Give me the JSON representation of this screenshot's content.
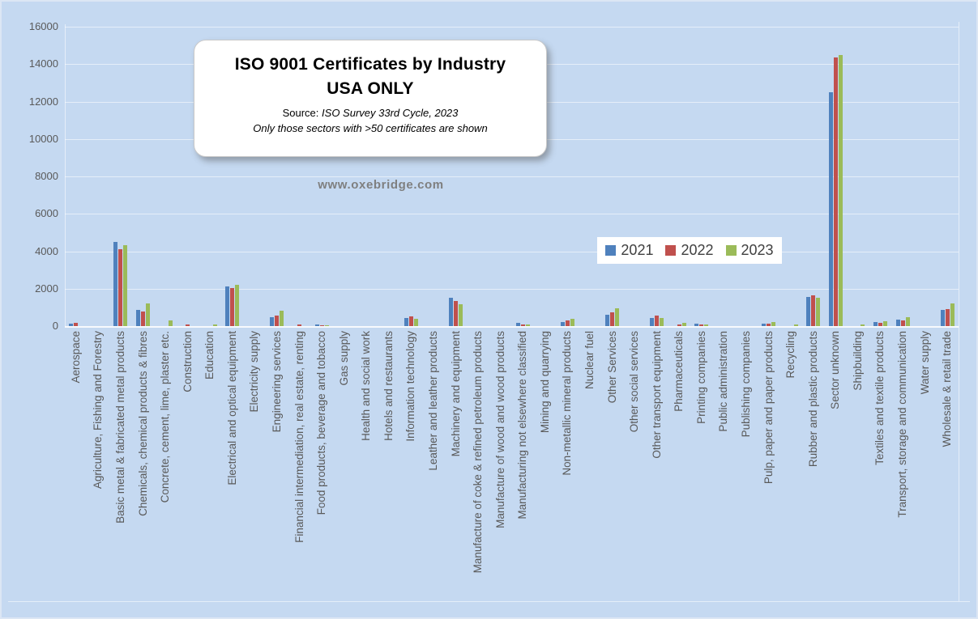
{
  "watermark": "www.oxebridge.com",
  "colors": {
    "background": "#c5d9f1",
    "bar_2021": "#4f81bd",
    "bar_2022": "#c0504d",
    "bar_2023": "#9bbb59",
    "axis_text": "#595959",
    "legend_text": "#404040",
    "watermark_color": "#7f7f7f"
  },
  "chart_data": {
    "type": "bar",
    "title": "ISO 9001 Certificates by Industry",
    "subtitle": "USA ONLY",
    "source_label": "Source:",
    "source": "ISO Survey 33rd Cycle, 2023",
    "note": "Only those sectors with >50 certificates are shown",
    "xlabel": "",
    "ylabel": "",
    "ylim": [
      0,
      16000
    ],
    "ytick_step": 2000,
    "grid": true,
    "legend_position": "center-right",
    "categories": [
      "Aerospace",
      "Agriculture, Fishing and Forestry",
      "Basic metal & fabricated metal products",
      "Chemicals, chemical products & fibres",
      "Concrete, cement, lime, plaster etc.",
      "Construction",
      "Education",
      "Electrical and optical equipment",
      "Electricity supply",
      "Engineering services",
      "Financial intermediation, real estate, renting",
      "Food products, beverage and tobacco",
      "Gas supply",
      "Health and social work",
      "Hotels and restaurants",
      "Information technology",
      "Leather and leather products",
      "Machinery and equipment",
      "Manufacture of coke & refined petroleum products",
      "Manufacture of wood and wood products",
      "Manufacturing not elsewhere classified",
      "Mining and quarrying",
      "Non-metallic mineral products",
      "Nuclear fuel",
      "Other Services",
      "Other social services",
      "Other transport equipment",
      "Pharmaceuticals",
      "Printing companies",
      "Public administration",
      "Publishing companies",
      "Pulp, paper and paper products",
      "Recycling",
      "Rubber and plastic products",
      "Sector unknown",
      "Shipbuilding",
      "Textiles and textile products",
      "Transport, storage and communication",
      "Water supply",
      "Wholesale & retail trade"
    ],
    "series": [
      {
        "name": "2021",
        "color": "#4f81bd",
        "values": [
          150,
          0,
          4500,
          880,
          0,
          0,
          0,
          2110,
          0,
          460,
          0,
          100,
          0,
          0,
          0,
          430,
          0,
          1530,
          0,
          0,
          160,
          0,
          230,
          0,
          590,
          0,
          420,
          0,
          130,
          0,
          0,
          150,
          0,
          1550,
          12500,
          0,
          230,
          345,
          0,
          870
        ]
      },
      {
        "name": "2022",
        "color": "#c0504d",
        "values": [
          190,
          0,
          4130,
          790,
          0,
          100,
          0,
          2050,
          0,
          560,
          90,
          65,
          0,
          0,
          0,
          500,
          0,
          1360,
          0,
          0,
          110,
          0,
          300,
          0,
          720,
          0,
          560,
          80,
          110,
          0,
          0,
          140,
          0,
          1630,
          14350,
          0,
          175,
          300,
          0,
          930
        ]
      },
      {
        "name": "2023",
        "color": "#9bbb59",
        "values": [
          0,
          0,
          4320,
          1200,
          300,
          0,
          100,
          2190,
          0,
          810,
          0,
          60,
          0,
          0,
          0,
          390,
          0,
          1190,
          0,
          0,
          110,
          0,
          400,
          0,
          950,
          0,
          450,
          170,
          90,
          0,
          0,
          220,
          80,
          1500,
          14500,
          110,
          240,
          490,
          0,
          1200
        ]
      }
    ]
  }
}
